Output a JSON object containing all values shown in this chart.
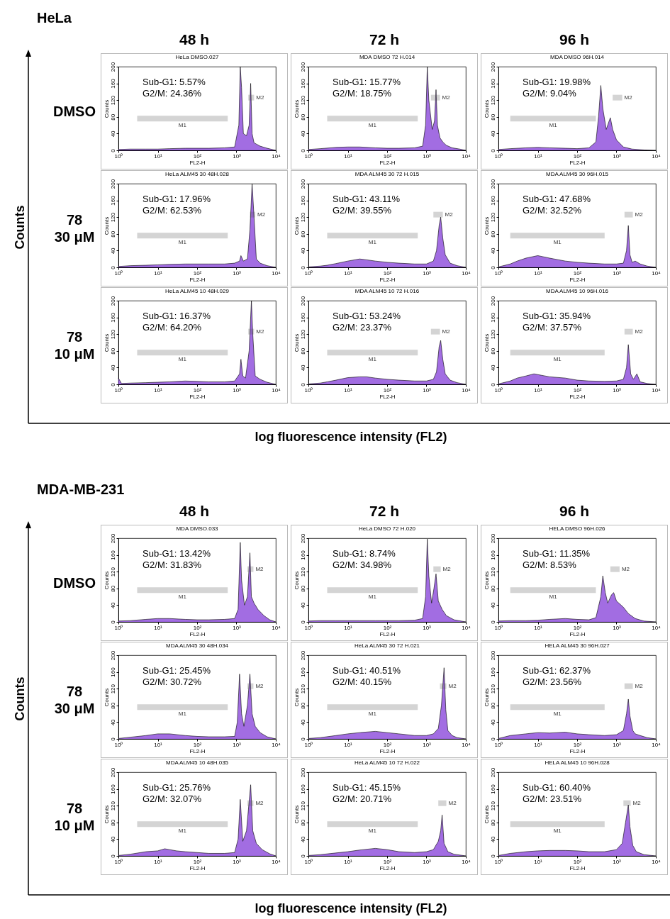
{
  "chart_data": [
    {
      "type": "other",
      "title": "HeLa",
      "categories": [
        "48 h",
        "72 h",
        "96 h"
      ],
      "y_categories": [
        "DMSO",
        "78\n30 μM",
        "78\n10 μM"
      ],
      "ylabel": "Counts",
      "xlabel": "log fluorescence intensity (FL2)"
    },
    {
      "type": "area",
      "title": "HeLa DMSO.027",
      "xlabel": "FL2-H",
      "ylabel": "Counts",
      "color": "#7b2fd6",
      "log": "x",
      "xlim": [
        1,
        10000
      ],
      "ylim": [
        0,
        200
      ],
      "xticks": [
        {
          "value": 1,
          "label": "10⁰"
        },
        {
          "value": 10,
          "label": "10¹"
        },
        {
          "value": 100,
          "label": "10²"
        },
        {
          "value": 1000,
          "label": "10³"
        },
        {
          "value": 10000,
          "label": "10⁴"
        }
      ],
      "yticks": [
        0,
        40,
        80,
        120,
        160,
        200
      ],
      "annotations": [
        "Sub-G1: 5.57%",
        "G2/M: 24.36%"
      ],
      "bands": [
        {
          "axis": "x",
          "from": 3,
          "to": 600,
          "label": "M1"
        },
        {
          "axis": "x",
          "from": 2000,
          "to": 2800,
          "label": "M2"
        }
      ],
      "x": [
        1,
        2,
        5,
        10,
        20,
        50,
        100,
        200,
        500,
        900,
        1150,
        1250,
        1350,
        1500,
        1800,
        2100,
        2300,
        2500,
        2800,
        3200,
        4000,
        6000,
        10000
      ],
      "values": [
        2,
        3,
        3,
        3,
        4,
        5,
        5,
        5,
        6,
        8,
        60,
        200,
        150,
        40,
        35,
        60,
        160,
        40,
        18,
        15,
        10,
        5,
        0
      ]
    },
    {
      "type": "area",
      "title": "MDA DMSO 72 H.014",
      "xlabel": "FL2-H",
      "ylabel": "Counts",
      "color": "#7b2fd6",
      "log": "x",
      "xlim": [
        1,
        10000
      ],
      "ylim": [
        0,
        200
      ],
      "xticks": [
        {
          "value": 1,
          "label": "10⁰"
        },
        {
          "value": 10,
          "label": "10¹"
        },
        {
          "value": 100,
          "label": "10²"
        },
        {
          "value": 1000,
          "label": "10³"
        },
        {
          "value": 10000,
          "label": "10⁴"
        }
      ],
      "yticks": [
        0,
        40,
        80,
        120,
        160,
        200
      ],
      "annotations": [
        "Sub-G1: 15.77%",
        "G2/M: 18.75%"
      ],
      "bands": [
        {
          "axis": "x",
          "from": 3,
          "to": 600,
          "label": "M1"
        },
        {
          "axis": "x",
          "from": 1300,
          "to": 2200,
          "label": "M2"
        }
      ],
      "x": [
        1,
        2,
        5,
        10,
        20,
        50,
        100,
        200,
        500,
        800,
        950,
        1050,
        1150,
        1400,
        1600,
        1750,
        1900,
        2200,
        2600,
        3200,
        4500,
        7000,
        10000
      ],
      "values": [
        2,
        4,
        7,
        8,
        8,
        6,
        5,
        5,
        6,
        10,
        60,
        200,
        120,
        50,
        70,
        145,
        60,
        30,
        20,
        12,
        6,
        3,
        0
      ]
    },
    {
      "type": "area",
      "title": "MDA DMSO 96H.014",
      "xlabel": "FL2-H",
      "ylabel": "Counts",
      "color": "#7b2fd6",
      "log": "x",
      "xlim": [
        1,
        10000
      ],
      "ylim": [
        0,
        200
      ],
      "xticks": [
        {
          "value": 1,
          "label": "10⁰"
        },
        {
          "value": 10,
          "label": "10¹"
        },
        {
          "value": 100,
          "label": "10²"
        },
        {
          "value": 1000,
          "label": "10³"
        },
        {
          "value": 10000,
          "label": "10⁴"
        }
      ],
      "yticks": [
        0,
        40,
        80,
        120,
        160,
        200
      ],
      "annotations": [
        "Sub-G1: 19.98%",
        "G2/M: 9.04%"
      ],
      "bands": [
        {
          "axis": "x",
          "from": 2,
          "to": 300,
          "label": "M1"
        },
        {
          "axis": "x",
          "from": 800,
          "to": 1400,
          "label": "M2"
        }
      ],
      "x": [
        1,
        2,
        5,
        10,
        20,
        50,
        100,
        200,
        300,
        350,
        400,
        450,
        550,
        650,
        700,
        800,
        1000,
        1500,
        2500,
        5000,
        10000
      ],
      "values": [
        2,
        4,
        6,
        7,
        6,
        5,
        4,
        6,
        20,
        80,
        155,
        100,
        50,
        70,
        78,
        50,
        25,
        8,
        3,
        1,
        0
      ]
    },
    {
      "type": "area",
      "title": "HeLa ALM45 30 48H.028",
      "xlabel": "FL2-H",
      "ylabel": "Counts",
      "color": "#7b2fd6",
      "log": "x",
      "xlim": [
        1,
        10000
      ],
      "ylim": [
        0,
        200
      ],
      "xticks": [
        {
          "value": 1,
          "label": "10⁰"
        },
        {
          "value": 10,
          "label": "10¹"
        },
        {
          "value": 100,
          "label": "10²"
        },
        {
          "value": 1000,
          "label": "10³"
        },
        {
          "value": 10000,
          "label": "10⁴"
        }
      ],
      "yticks": [
        0,
        40,
        80,
        120,
        160,
        200
      ],
      "annotations": [
        "Sub-G1: 17.96%",
        "G2/M: 62.53%"
      ],
      "bands": [
        {
          "axis": "x",
          "from": 3,
          "to": 600,
          "label": "M1"
        },
        {
          "axis": "x",
          "from": 2200,
          "to": 3000,
          "label": "M2"
        }
      ],
      "x": [
        1,
        2,
        5,
        10,
        20,
        50,
        100,
        200,
        500,
        900,
        1200,
        1300,
        1500,
        1900,
        2200,
        2500,
        2800,
        3200,
        4000,
        6000,
        10000
      ],
      "values": [
        2,
        4,
        5,
        6,
        7,
        8,
        8,
        8,
        8,
        10,
        15,
        28,
        15,
        20,
        90,
        200,
        120,
        20,
        10,
        4,
        0
      ]
    },
    {
      "type": "area",
      "title": "MDA ALM45 30 72 H.015",
      "xlabel": "FL2-H",
      "ylabel": "Counts",
      "color": "#7b2fd6",
      "log": "x",
      "xlim": [
        1,
        10000
      ],
      "ylim": [
        0,
        200
      ],
      "xticks": [
        {
          "value": 1,
          "label": "10⁰"
        },
        {
          "value": 10,
          "label": "10¹"
        },
        {
          "value": 100,
          "label": "10²"
        },
        {
          "value": 1000,
          "label": "10³"
        },
        {
          "value": 10000,
          "label": "10⁴"
        }
      ],
      "yticks": [
        0,
        40,
        80,
        120,
        160,
        200
      ],
      "annotations": [
        "Sub-G1: 43.11%",
        "G2/M: 39.55%"
      ],
      "bands": [
        {
          "axis": "x",
          "from": 3,
          "to": 600,
          "label": "M1"
        },
        {
          "axis": "x",
          "from": 1500,
          "to": 2600,
          "label": "M2"
        }
      ],
      "x": [
        1,
        2,
        3,
        5,
        10,
        20,
        30,
        50,
        100,
        200,
        500,
        1000,
        1500,
        1800,
        2100,
        2300,
        2600,
        3000,
        4000,
        6000,
        10000
      ],
      "values": [
        1,
        3,
        5,
        9,
        15,
        20,
        18,
        15,
        12,
        10,
        8,
        8,
        15,
        40,
        100,
        120,
        70,
        30,
        10,
        4,
        0
      ]
    },
    {
      "type": "area",
      "title": "MDA ALM45 30 96H.015",
      "xlabel": "FL2-H",
      "ylabel": "Counts",
      "color": "#7b2fd6",
      "log": "x",
      "xlim": [
        1,
        10000
      ],
      "ylim": [
        0,
        200
      ],
      "xticks": [
        {
          "value": 1,
          "label": "10⁰"
        },
        {
          "value": 10,
          "label": "10¹"
        },
        {
          "value": 100,
          "label": "10²"
        },
        {
          "value": 1000,
          "label": "10³"
        },
        {
          "value": 10000,
          "label": "10⁴"
        }
      ],
      "yticks": [
        0,
        40,
        80,
        120,
        160,
        200
      ],
      "annotations": [
        "Sub-G1: 47.68%",
        "G2/M: 32.52%"
      ],
      "bands": [
        {
          "axis": "x",
          "from": 2,
          "to": 500,
          "label": "M1"
        },
        {
          "axis": "x",
          "from": 1600,
          "to": 2600,
          "label": "M2"
        }
      ],
      "x": [
        1,
        2,
        3,
        5,
        10,
        20,
        50,
        100,
        200,
        500,
        1000,
        1500,
        1800,
        2000,
        2200,
        2500,
        3000,
        4000,
        6000,
        10000
      ],
      "values": [
        1,
        8,
        15,
        22,
        28,
        22,
        15,
        12,
        10,
        8,
        8,
        10,
        40,
        100,
        30,
        12,
        15,
        8,
        3,
        0
      ]
    },
    {
      "type": "area",
      "title": "HeLa ALM45 10 48H.029",
      "xlabel": "FL2-H",
      "ylabel": "Counts",
      "color": "#7b2fd6",
      "log": "x",
      "xlim": [
        1,
        10000
      ],
      "ylim": [
        0,
        200
      ],
      "xticks": [
        {
          "value": 1,
          "label": "10⁰"
        },
        {
          "value": 10,
          "label": "10¹"
        },
        {
          "value": 100,
          "label": "10²"
        },
        {
          "value": 1000,
          "label": "10³"
        },
        {
          "value": 10000,
          "label": "10⁴"
        }
      ],
      "yticks": [
        0,
        40,
        80,
        120,
        160,
        200
      ],
      "annotations": [
        "Sub-G1: 16.37%",
        "G2/M: 64.20%"
      ],
      "bands": [
        {
          "axis": "x",
          "from": 3,
          "to": 600,
          "label": "M1"
        },
        {
          "axis": "x",
          "from": 2000,
          "to": 2800,
          "label": "M2"
        }
      ],
      "x": [
        1,
        1.2,
        2,
        5,
        10,
        20,
        50,
        100,
        200,
        500,
        900,
        1200,
        1300,
        1450,
        1700,
        2100,
        2400,
        2600,
        3000,
        4000,
        6000,
        10000
      ],
      "values": [
        15,
        2,
        3,
        4,
        5,
        6,
        8,
        7,
        6,
        6,
        8,
        25,
        60,
        20,
        15,
        80,
        200,
        120,
        20,
        12,
        5,
        0
      ]
    },
    {
      "type": "area",
      "title": "MDA ALM45 10 72 H.016",
      "xlabel": "FL2-H",
      "ylabel": "Counts",
      "color": "#7b2fd6",
      "log": "x",
      "xlim": [
        1,
        10000
      ],
      "ylim": [
        0,
        200
      ],
      "xticks": [
        {
          "value": 1,
          "label": "10⁰"
        },
        {
          "value": 10,
          "label": "10¹"
        },
        {
          "value": 100,
          "label": "10²"
        },
        {
          "value": 1000,
          "label": "10³"
        },
        {
          "value": 10000,
          "label": "10⁴"
        }
      ],
      "yticks": [
        0,
        40,
        80,
        120,
        160,
        200
      ],
      "annotations": [
        "Sub-G1: 53.24%",
        "G2/M: 23.37%"
      ],
      "bands": [
        {
          "axis": "x",
          "from": 3,
          "to": 600,
          "label": "M1"
        },
        {
          "axis": "x",
          "from": 1300,
          "to": 2200,
          "label": "M2"
        }
      ],
      "x": [
        1,
        2,
        3,
        5,
        10,
        20,
        30,
        50,
        100,
        200,
        500,
        1000,
        1500,
        1800,
        2100,
        2300,
        2600,
        3000,
        4000,
        6000,
        10000
      ],
      "values": [
        1,
        3,
        6,
        10,
        16,
        18,
        18,
        15,
        12,
        10,
        8,
        8,
        12,
        30,
        90,
        105,
        60,
        25,
        10,
        4,
        0
      ]
    },
    {
      "type": "area",
      "title": "MDA ALM45 10 96H.016",
      "xlabel": "FL2-H",
      "ylabel": "Counts",
      "color": "#7b2fd6",
      "log": "x",
      "xlim": [
        1,
        10000
      ],
      "ylim": [
        0,
        200
      ],
      "xticks": [
        {
          "value": 1,
          "label": "10⁰"
        },
        {
          "value": 10,
          "label": "10¹"
        },
        {
          "value": 100,
          "label": "10²"
        },
        {
          "value": 1000,
          "label": "10³"
        },
        {
          "value": 10000,
          "label": "10⁴"
        }
      ],
      "yticks": [
        0,
        40,
        80,
        120,
        160,
        200
      ],
      "annotations": [
        "Sub-G1: 35.94%",
        "G2/M: 37.57%"
      ],
      "bands": [
        {
          "axis": "x",
          "from": 2,
          "to": 500,
          "label": "M1"
        },
        {
          "axis": "x",
          "from": 1600,
          "to": 2600,
          "label": "M2"
        }
      ],
      "x": [
        1,
        2,
        3,
        5,
        8,
        20,
        50,
        100,
        200,
        500,
        1000,
        1500,
        1800,
        2000,
        2300,
        2700,
        3300,
        4000,
        6000,
        10000
      ],
      "values": [
        1,
        8,
        15,
        20,
        25,
        18,
        15,
        10,
        8,
        7,
        8,
        12,
        40,
        95,
        25,
        12,
        25,
        6,
        2,
        0
      ]
    },
    {
      "type": "other",
      "title": "MDA-MB-231",
      "categories": [
        "48 h",
        "72 h",
        "96 h"
      ],
      "y_categories": [
        "DMSO",
        "78\n30 μM",
        "78\n10 μM"
      ],
      "ylabel": "Counts",
      "xlabel": "log fluorescence intensity (FL2)"
    },
    {
      "type": "area",
      "title": "MDA DMSO.033",
      "xlabel": "FL2-H",
      "ylabel": "Counts",
      "color": "#7b2fd6",
      "log": "x",
      "xlim": [
        1,
        10000
      ],
      "ylim": [
        0,
        200
      ],
      "xticks": [
        {
          "value": 1,
          "label": "10⁰"
        },
        {
          "value": 10,
          "label": "10¹"
        },
        {
          "value": 100,
          "label": "10²"
        },
        {
          "value": 1000,
          "label": "10³"
        },
        {
          "value": 10000,
          "label": "10⁴"
        }
      ],
      "yticks": [
        0,
        40,
        80,
        120,
        160,
        200
      ],
      "annotations": [
        "Sub-G1: 13.42%",
        "G2/M: 31.83%"
      ],
      "bands": [
        {
          "axis": "x",
          "from": 3,
          "to": 600,
          "label": "M1"
        },
        {
          "axis": "x",
          "from": 1900,
          "to": 2700,
          "label": "M2"
        }
      ],
      "x": [
        1,
        2,
        5,
        10,
        20,
        50,
        100,
        200,
        500,
        900,
        1100,
        1250,
        1350,
        1600,
        1900,
        2200,
        2400,
        2800,
        3500,
        5000,
        7000,
        10000
      ],
      "values": [
        2,
        3,
        6,
        8,
        8,
        6,
        5,
        5,
        6,
        8,
        30,
        190,
        100,
        40,
        60,
        165,
        60,
        45,
        30,
        15,
        5,
        0
      ]
    },
    {
      "type": "area",
      "title": "HeLa DMSO 72 H.020",
      "xlabel": "FL2-H",
      "ylabel": "Counts",
      "color": "#7b2fd6",
      "log": "x",
      "xlim": [
        1,
        10000
      ],
      "ylim": [
        0,
        200
      ],
      "xticks": [
        {
          "value": 1,
          "label": "10⁰"
        },
        {
          "value": 10,
          "label": "10¹"
        },
        {
          "value": 100,
          "label": "10²"
        },
        {
          "value": 1000,
          "label": "10³"
        },
        {
          "value": 10000,
          "label": "10⁴"
        }
      ],
      "yticks": [
        0,
        40,
        80,
        120,
        160,
        200
      ],
      "annotations": [
        "Sub-G1: 8.74%",
        "G2/M: 34.98%"
      ],
      "bands": [
        {
          "axis": "x",
          "from": 3,
          "to": 600,
          "label": "M1"
        },
        {
          "axis": "x",
          "from": 1500,
          "to": 2300,
          "label": "M2"
        }
      ],
      "x": [
        1,
        2,
        5,
        10,
        20,
        50,
        100,
        200,
        500,
        800,
        950,
        1050,
        1150,
        1350,
        1550,
        1750,
        2000,
        2500,
        3200,
        5000,
        10000
      ],
      "values": [
        2,
        3,
        3,
        3,
        3,
        3,
        3,
        3,
        4,
        8,
        60,
        198,
        110,
        45,
        80,
        115,
        50,
        30,
        15,
        5,
        0
      ]
    },
    {
      "type": "area",
      "title": "HELA DMSO 96H.026",
      "xlabel": "FL2-H",
      "ylabel": "Counts",
      "color": "#7b2fd6",
      "log": "x",
      "xlim": [
        1,
        10000
      ],
      "ylim": [
        0,
        200
      ],
      "xticks": [
        {
          "value": 1,
          "label": "10⁰"
        },
        {
          "value": 10,
          "label": "10¹"
        },
        {
          "value": 100,
          "label": "10²"
        },
        {
          "value": 1000,
          "label": "10³"
        },
        {
          "value": 10000,
          "label": "10⁴"
        }
      ],
      "yticks": [
        0,
        40,
        80,
        120,
        160,
        200
      ],
      "annotations": [
        "Sub-G1: 11.35%",
        "G2/M: 8.53%"
      ],
      "bands": [
        {
          "axis": "x",
          "from": 2,
          "to": 300,
          "label": "M1"
        },
        {
          "axis": "x",
          "from": 700,
          "to": 1200,
          "label": "M2"
        }
      ],
      "x": [
        1,
        2,
        5,
        10,
        20,
        50,
        100,
        200,
        300,
        400,
        450,
        520,
        600,
        750,
        850,
        1000,
        1500,
        2000,
        3000,
        5000,
        10000
      ],
      "values": [
        2,
        3,
        3,
        4,
        6,
        8,
        6,
        5,
        10,
        60,
        110,
        70,
        45,
        65,
        70,
        50,
        35,
        20,
        8,
        2,
        0
      ]
    },
    {
      "type": "area",
      "title": "MDA ALM45 30 48H.034",
      "xlabel": "FL2-H",
      "ylabel": "Counts",
      "color": "#7b2fd6",
      "log": "x",
      "xlim": [
        1,
        10000
      ],
      "ylim": [
        0,
        200
      ],
      "xticks": [
        {
          "value": 1,
          "label": "10⁰"
        },
        {
          "value": 10,
          "label": "10¹"
        },
        {
          "value": 100,
          "label": "10²"
        },
        {
          "value": 1000,
          "label": "10³"
        },
        {
          "value": 10000,
          "label": "10⁴"
        }
      ],
      "yticks": [
        0,
        40,
        80,
        120,
        160,
        200
      ],
      "annotations": [
        "Sub-G1: 25.45%",
        "G2/M: 30.72%"
      ],
      "bands": [
        {
          "axis": "x",
          "from": 3,
          "to": 600,
          "label": "M1"
        },
        {
          "axis": "x",
          "from": 1900,
          "to": 2700,
          "label": "M2"
        }
      ],
      "x": [
        1,
        2,
        5,
        10,
        20,
        50,
        100,
        200,
        500,
        900,
        1050,
        1200,
        1350,
        1550,
        1900,
        2200,
        2500,
        3000,
        4000,
        6000,
        10000
      ],
      "values": [
        1,
        4,
        8,
        12,
        12,
        8,
        6,
        5,
        5,
        6,
        40,
        155,
        60,
        30,
        80,
        155,
        60,
        30,
        15,
        5,
        0
      ]
    },
    {
      "type": "area",
      "title": "HeLa ALM45 30 72 H.021",
      "xlabel": "FL2-H",
      "ylabel": "Counts",
      "color": "#7b2fd6",
      "log": "x",
      "xlim": [
        1,
        10000
      ],
      "ylim": [
        0,
        200
      ],
      "xticks": [
        {
          "value": 1,
          "label": "10⁰"
        },
        {
          "value": 10,
          "label": "10¹"
        },
        {
          "value": 100,
          "label": "10²"
        },
        {
          "value": 1000,
          "label": "10³"
        },
        {
          "value": 10000,
          "label": "10⁴"
        }
      ],
      "yticks": [
        0,
        40,
        80,
        120,
        160,
        200
      ],
      "annotations": [
        "Sub-G1: 40.51%",
        "G2/M: 40.15%"
      ],
      "bands": [
        {
          "axis": "x",
          "from": 3,
          "to": 600,
          "label": "M1"
        },
        {
          "axis": "x",
          "from": 2200,
          "to": 3200,
          "label": "M2"
        }
      ],
      "x": [
        1,
        2,
        5,
        10,
        20,
        50,
        100,
        200,
        500,
        1000,
        1500,
        2000,
        2400,
        2800,
        3100,
        3500,
        4500,
        6000,
        10000
      ],
      "values": [
        1,
        3,
        8,
        12,
        15,
        18,
        15,
        12,
        8,
        8,
        12,
        25,
        80,
        170,
        70,
        20,
        8,
        3,
        0
      ]
    },
    {
      "type": "area",
      "title": "HELA ALM45 30 96H.027",
      "xlabel": "FL2-H",
      "ylabel": "Counts",
      "color": "#7b2fd6",
      "log": "x",
      "xlim": [
        1,
        10000
      ],
      "ylim": [
        0,
        200
      ],
      "xticks": [
        {
          "value": 1,
          "label": "10⁰"
        },
        {
          "value": 10,
          "label": "10¹"
        },
        {
          "value": 100,
          "label": "10²"
        },
        {
          "value": 1000,
          "label": "10³"
        },
        {
          "value": 10000,
          "label": "10⁴"
        }
      ],
      "yticks": [
        0,
        40,
        80,
        120,
        160,
        200
      ],
      "annotations": [
        "Sub-G1: 62.37%",
        "G2/M: 23.56%"
      ],
      "bands": [
        {
          "axis": "x",
          "from": 2,
          "to": 500,
          "label": "M1"
        },
        {
          "axis": "x",
          "from": 1600,
          "to": 2600,
          "label": "M2"
        }
      ],
      "x": [
        1,
        2,
        5,
        10,
        20,
        50,
        100,
        200,
        500,
        1000,
        1500,
        1800,
        2000,
        2200,
        2600,
        3000,
        4000,
        6000,
        10000
      ],
      "values": [
        1,
        8,
        12,
        15,
        14,
        16,
        12,
        10,
        8,
        10,
        20,
        60,
        95,
        55,
        20,
        12,
        8,
        3,
        0
      ]
    },
    {
      "type": "area",
      "title": "MDA ALM45 10 48H.035",
      "xlabel": "FL2-H",
      "ylabel": "Counts",
      "color": "#7b2fd6",
      "log": "x",
      "xlim": [
        1,
        10000
      ],
      "ylim": [
        0,
        200
      ],
      "xticks": [
        {
          "value": 1,
          "label": "10⁰"
        },
        {
          "value": 10,
          "label": "10¹"
        },
        {
          "value": 100,
          "label": "10²"
        },
        {
          "value": 1000,
          "label": "10³"
        },
        {
          "value": 10000,
          "label": "10⁴"
        }
      ],
      "yticks": [
        0,
        40,
        80,
        120,
        160,
        200
      ],
      "annotations": [
        "Sub-G1: 25.76%",
        "G2/M: 32.07%"
      ],
      "bands": [
        {
          "axis": "x",
          "from": 3,
          "to": 600,
          "label": "M1"
        },
        {
          "axis": "x",
          "from": 1900,
          "to": 2700,
          "label": "M2"
        }
      ],
      "x": [
        1,
        2,
        5,
        10,
        15,
        30,
        50,
        100,
        200,
        500,
        900,
        1100,
        1250,
        1450,
        1800,
        2100,
        2300,
        2600,
        3200,
        4500,
        7000,
        10000
      ],
      "values": [
        1,
        4,
        10,
        12,
        17,
        12,
        10,
        8,
        6,
        6,
        8,
        40,
        135,
        35,
        60,
        130,
        170,
        60,
        30,
        15,
        5,
        0
      ]
    },
    {
      "type": "area",
      "title": "HeLa ALM45 10 72 H.022",
      "xlabel": "FL2-H",
      "ylabel": "Counts",
      "color": "#7b2fd6",
      "log": "x",
      "xlim": [
        1,
        10000
      ],
      "ylim": [
        0,
        200
      ],
      "xticks": [
        {
          "value": 1,
          "label": "10⁰"
        },
        {
          "value": 10,
          "label": "10¹"
        },
        {
          "value": 100,
          "label": "10²"
        },
        {
          "value": 1000,
          "label": "10³"
        },
        {
          "value": 10000,
          "label": "10⁴"
        }
      ],
      "yticks": [
        0,
        40,
        80,
        120,
        160,
        200
      ],
      "annotations": [
        "Sub-G1: 45.15%",
        "G2/M: 20.71%"
      ],
      "bands": [
        {
          "axis": "x",
          "from": 3,
          "to": 600,
          "label": "M1"
        },
        {
          "axis": "x",
          "from": 2000,
          "to": 3200,
          "label": "M2"
        }
      ],
      "x": [
        1,
        2,
        5,
        10,
        20,
        50,
        100,
        200,
        500,
        1000,
        1500,
        2000,
        2300,
        2500,
        2800,
        3500,
        5000,
        10000
      ],
      "values": [
        1,
        3,
        7,
        10,
        14,
        18,
        15,
        10,
        8,
        10,
        15,
        35,
        60,
        98,
        30,
        10,
        4,
        0
      ]
    },
    {
      "type": "area",
      "title": "HELA ALM45 10 96H.028",
      "xlabel": "FL2-H",
      "ylabel": "Counts",
      "color": "#7b2fd6",
      "log": "x",
      "xlim": [
        1,
        10000
      ],
      "ylim": [
        0,
        200
      ],
      "xticks": [
        {
          "value": 1,
          "label": "10⁰"
        },
        {
          "value": 10,
          "label": "10¹"
        },
        {
          "value": 100,
          "label": "10²"
        },
        {
          "value": 1000,
          "label": "10³"
        },
        {
          "value": 10000,
          "label": "10⁴"
        }
      ],
      "yticks": [
        0,
        40,
        80,
        120,
        160,
        200
      ],
      "annotations": [
        "Sub-G1: 60.40%",
        "G2/M: 23.51%"
      ],
      "bands": [
        {
          "axis": "x",
          "from": 2,
          "to": 500,
          "label": "M1"
        },
        {
          "axis": "x",
          "from": 1500,
          "to": 2300,
          "label": "M2"
        }
      ],
      "x": [
        1,
        2,
        5,
        10,
        20,
        50,
        100,
        200,
        500,
        1000,
        1400,
        1700,
        2000,
        2200,
        2600,
        3200,
        5000,
        10000
      ],
      "values": [
        1,
        6,
        10,
        12,
        13,
        13,
        12,
        10,
        10,
        15,
        30,
        80,
        122,
        70,
        25,
        10,
        3,
        0
      ]
    }
  ]
}
